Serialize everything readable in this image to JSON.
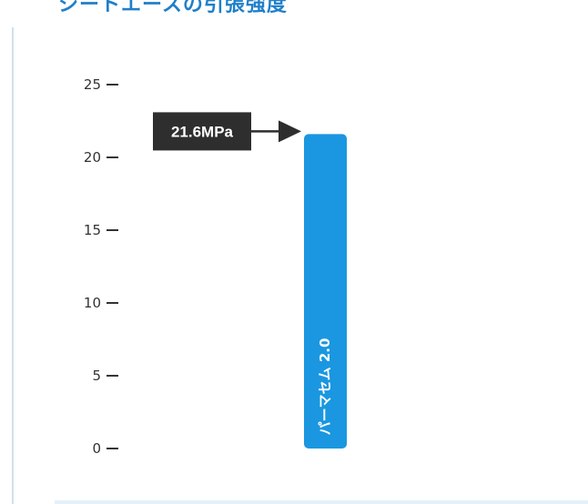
{
  "heading": "シートエースの引張強度",
  "chart_data": {
    "type": "bar",
    "categories": [
      "パーマセム 2.0"
    ],
    "values": [
      21.6
    ],
    "ylim": [
      0,
      25
    ],
    "yticks": [
      0,
      5,
      10,
      15,
      20,
      25
    ],
    "title": "",
    "xlabel": "",
    "ylabel": "",
    "annotation": {
      "text": "21.6MPa",
      "points_to": 21.6
    },
    "bar_color": "#1a97e0",
    "annotation_color": "#2e2e2e",
    "grid": false,
    "legend": false
  }
}
